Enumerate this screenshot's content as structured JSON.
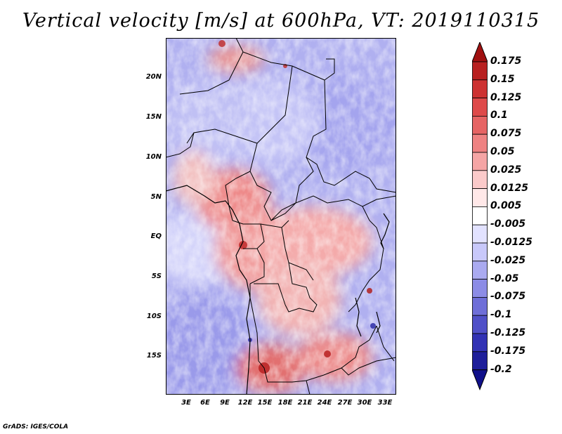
{
  "title": "Vertical velocity [m/s] at 600hPa, VT: 2019110315",
  "footer": "GrADS: IGES/COLA",
  "map": {
    "lat_labels": [
      "20N",
      "15N",
      "10N",
      "5N",
      "EQ",
      "5S",
      "10S",
      "15S"
    ],
    "lon_labels": [
      "3E",
      "6E",
      "9E",
      "12E",
      "15E",
      "18E",
      "21E",
      "24E",
      "27E",
      "30E",
      "33E"
    ]
  },
  "colorbar": {
    "labels": [
      "0.175",
      "0.15",
      "0.125",
      "0.1",
      "0.075",
      "0.05",
      "0.025",
      "0.0125",
      "0.005",
      "-0.005",
      "-0.0125",
      "-0.025",
      "-0.05",
      "-0.075",
      "-0.1",
      "-0.125",
      "-0.175",
      "-0.2"
    ],
    "colors": [
      "#a01010",
      "#b82020",
      "#cd3232",
      "#de4a4a",
      "#e66464",
      "#ee8282",
      "#f5a5a5",
      "#fbcaca",
      "#ffe8e8",
      "#ffffff",
      "#e2e2ff",
      "#c8c8fa",
      "#aaaaf0",
      "#8c8ce6",
      "#6e6ed8",
      "#5050c8",
      "#3232b4",
      "#1e1e9a",
      "#10108a"
    ]
  }
}
